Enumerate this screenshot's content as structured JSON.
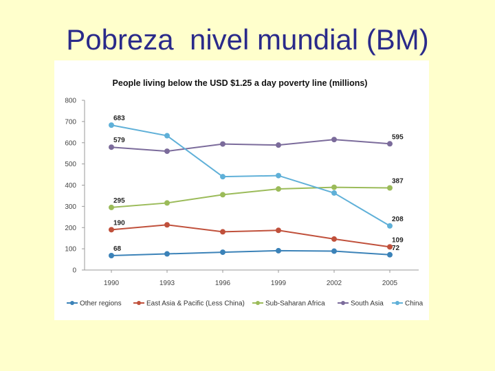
{
  "slide": {
    "title": "Pobreza  nivel mundial (BM)"
  },
  "chart_data": {
    "type": "line",
    "title": "People living below the USD $1.25 a day poverty line (millions)",
    "xlabel": "",
    "ylabel": "",
    "categories": [
      "1990",
      "1993",
      "1996",
      "1999",
      "2002",
      "2005"
    ],
    "ylim": [
      0,
      800
    ],
    "yticks": [
      0,
      100,
      200,
      300,
      400,
      500,
      600,
      700,
      800
    ],
    "grid": false,
    "legend_position": "bottom",
    "series": [
      {
        "name": "Other regions",
        "color": "#3b82b8",
        "values": [
          68,
          76,
          84,
          91,
          89,
          72
        ],
        "labels": {
          "0": "68",
          "5": "72"
        }
      },
      {
        "name": "East Asia & Pacific (Less China)",
        "color": "#c0503b",
        "values": [
          190,
          213,
          180,
          187,
          146,
          109
        ],
        "labels": {
          "0": "190",
          "5": "109"
        }
      },
      {
        "name": "Sub-Saharan Africa",
        "color": "#9bbb59",
        "values": [
          295,
          316,
          355,
          382,
          390,
          387
        ],
        "labels": {
          "0": "295",
          "5": "387"
        }
      },
      {
        "name": "South Asia",
        "color": "#7b6b9b",
        "values": [
          579,
          560,
          594,
          589,
          615,
          595
        ],
        "labels": {
          "0": "579",
          "5": "595"
        }
      },
      {
        "name": "China",
        "color": "#5fb0d8",
        "values": [
          683,
          633,
          440,
          445,
          363,
          208
        ],
        "labels": {
          "0": "683",
          "5": "208"
        }
      }
    ]
  }
}
